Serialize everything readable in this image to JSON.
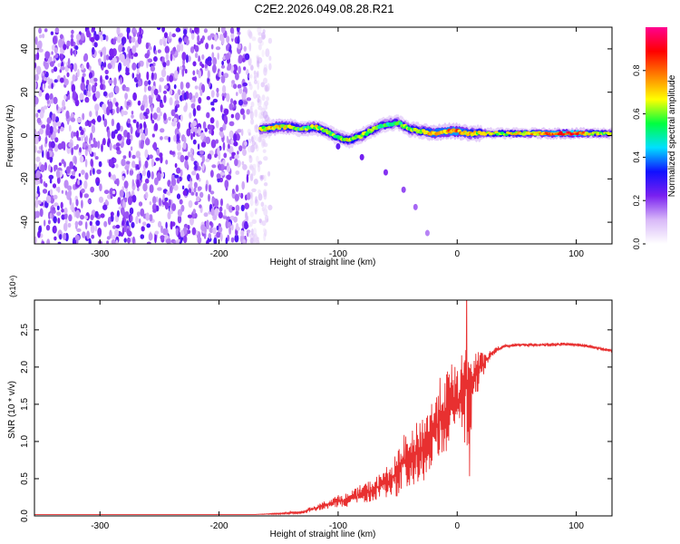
{
  "chart_data": [
    {
      "type": "heatmap",
      "title": "C2E2.2026.049.08.28.R21",
      "xlabel": "Height of straight line (km)",
      "ylabel": "Frequency (Hz)",
      "xlim": [
        -355,
        130
      ],
      "ylim": [
        -50,
        50
      ],
      "xticks": [
        -300,
        -200,
        -100,
        0,
        100
      ],
      "yticks": [
        -40,
        -20,
        0,
        20,
        40
      ],
      "colorbar": {
        "label": "Normalized spectral amplitude",
        "range": [
          0,
          1
        ],
        "ticks": [
          0.0,
          0.2,
          0.4,
          0.6,
          0.8
        ],
        "colors": [
          "#ffffff",
          "#d8b8f8",
          "#7a20f0",
          "#1010ff",
          "#00e0ff",
          "#00ff40",
          "#ffff00",
          "#ff8000",
          "#ff0000",
          "#ff0090"
        ]
      },
      "noise_region": {
        "x_range": [
          -355,
          -165
        ],
        "typical_amplitude": 0.2
      },
      "signal_track": [
        {
          "x": -165,
          "f": 3,
          "a": 0.55
        },
        {
          "x": -150,
          "f": 4,
          "a": 0.7
        },
        {
          "x": -140,
          "f": 4,
          "a": 0.6
        },
        {
          "x": -130,
          "f": 3,
          "a": 0.5
        },
        {
          "x": -120,
          "f": 4,
          "a": 0.6
        },
        {
          "x": -110,
          "f": 2,
          "a": 0.55
        },
        {
          "x": -100,
          "f": -1,
          "a": 0.55
        },
        {
          "x": -90,
          "f": -2,
          "a": 0.6
        },
        {
          "x": -80,
          "f": 0,
          "a": 0.6
        },
        {
          "x": -70,
          "f": 3,
          "a": 0.55
        },
        {
          "x": -60,
          "f": 5,
          "a": 0.5
        },
        {
          "x": -50,
          "f": 6,
          "a": 0.5
        },
        {
          "x": -40,
          "f": 3,
          "a": 0.55
        },
        {
          "x": -30,
          "f": 2,
          "a": 0.6
        },
        {
          "x": -20,
          "f": 1,
          "a": 0.7
        },
        {
          "x": -10,
          "f": 2,
          "a": 0.7
        },
        {
          "x": 0,
          "f": 2,
          "a": 0.75
        },
        {
          "x": 10,
          "f": 1,
          "a": 0.65
        },
        {
          "x": 20,
          "f": 1,
          "a": 0.6
        },
        {
          "x": 40,
          "f": 1,
          "a": 0.6
        },
        {
          "x": 60,
          "f": 1,
          "a": 0.65
        },
        {
          "x": 80,
          "f": 1,
          "a": 0.75
        },
        {
          "x": 90,
          "f": 1,
          "a": 0.85
        },
        {
          "x": 100,
          "f": 1,
          "a": 0.8
        },
        {
          "x": 115,
          "f": 1,
          "a": 0.6
        },
        {
          "x": 130,
          "f": 1,
          "a": 0.55
        }
      ],
      "secondary_track": [
        {
          "x": -100,
          "f": -5
        },
        {
          "x": -80,
          "f": -10
        },
        {
          "x": -60,
          "f": -17
        },
        {
          "x": -45,
          "f": -25
        },
        {
          "x": -35,
          "f": -33
        },
        {
          "x": -25,
          "f": -45
        }
      ]
    },
    {
      "type": "line",
      "xlabel": "Height of straight line (km)",
      "ylabel": "SNR (10 * v/v)",
      "y_multiplier": "(x10⁴)",
      "xlim": [
        -355,
        130
      ],
      "ylim": [
        0,
        2.9
      ],
      "xticks": [
        -300,
        -200,
        -100,
        0,
        100
      ],
      "yticks": [
        0.0,
        0.5,
        1.0,
        1.5,
        2.0,
        2.5
      ],
      "ytick_labels": [
        "0.0",
        "0.5",
        "1.0",
        "1.5",
        "2.0",
        "2.5"
      ],
      "series": [
        {
          "color": "#e83030",
          "x": [
            -355,
            -300,
            -250,
            -200,
            -170,
            -150,
            -130,
            -120,
            -110,
            -100,
            -90,
            -80,
            -70,
            -60,
            -50,
            -45,
            -40,
            -35,
            -30,
            -25,
            -20,
            -15,
            -10,
            -5,
            0,
            5,
            8,
            10,
            12,
            15,
            20,
            25,
            30,
            35,
            40,
            50,
            60,
            70,
            80,
            90,
            100,
            110,
            120,
            130
          ],
          "y": [
            0.02,
            0.02,
            0.02,
            0.02,
            0.02,
            0.03,
            0.05,
            0.1,
            0.15,
            0.2,
            0.22,
            0.3,
            0.35,
            0.45,
            0.55,
            0.75,
            0.7,
            0.85,
            0.9,
            1.0,
            1.1,
            1.3,
            1.4,
            1.5,
            1.55,
            1.6,
            2.0,
            1.2,
            1.7,
            1.9,
            2.0,
            2.1,
            2.2,
            2.25,
            2.28,
            2.3,
            2.3,
            2.3,
            2.3,
            2.31,
            2.3,
            2.28,
            2.25,
            2.22
          ],
          "noise_amplitude": [
            0,
            0,
            0,
            0,
            0,
            0.01,
            0.02,
            0.04,
            0.06,
            0.08,
            0.1,
            0.13,
            0.15,
            0.2,
            0.3,
            0.35,
            0.35,
            0.4,
            0.45,
            0.5,
            0.5,
            0.55,
            0.55,
            0.55,
            0.5,
            0.6,
            0.9,
            0.6,
            0.5,
            0.35,
            0.2,
            0.08,
            0.05,
            0.03,
            0.02,
            0.02,
            0.02,
            0.02,
            0.03,
            0.02,
            0.02,
            0.02,
            0.02,
            0.02
          ]
        }
      ]
    }
  ]
}
